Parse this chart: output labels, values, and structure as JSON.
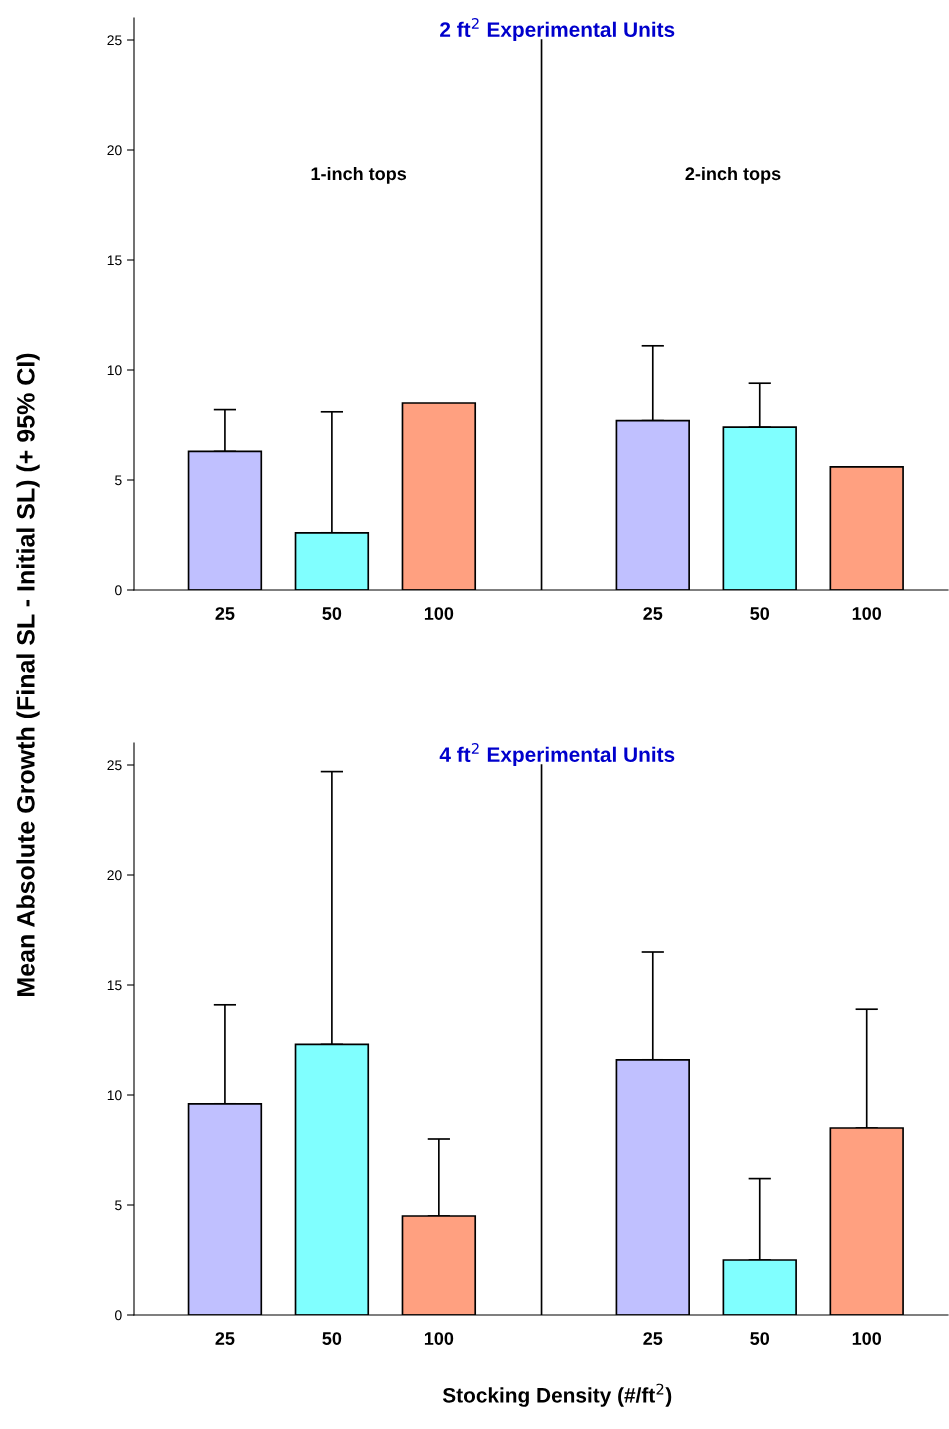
{
  "chart_data": [
    {
      "type": "bar",
      "title": "2 ft$^{2}$ Experimental Units",
      "ylabel": "Mean Absolute Growth (Final SL - Initial SL) (+ 95% CI)",
      "categories": [
        "25",
        "50",
        "100",
        null,
        "25",
        "50",
        "100"
      ],
      "values": [
        6.3,
        2.6,
        8.5,
        null,
        7.7,
        7.4,
        5.6
      ],
      "colors": [
        "#c0c0ff",
        "#80ffff",
        "#ffa080",
        null,
        "#c0c0ff",
        "#80ffff",
        "#ffa080"
      ],
      "errors": [
        [
          6.3,
          8.2
        ],
        [
          2.6,
          8.1
        ],
        null,
        null,
        [
          7.7,
          11.1
        ],
        [
          7.4,
          9.4
        ],
        null
      ],
      "annotations": [
        "1-inch tops",
        "2-inch tops"
      ],
      "ylim": [
        0,
        26
      ],
      "yticks": [
        0,
        5,
        10,
        15,
        20,
        25
      ],
      "legend": false
    },
    {
      "type": "bar",
      "title": "4 ft$^{2}$ Experimental Units",
      "xlabel": "Stocking Density (#/ft$^{2}$)",
      "categories": [
        "25",
        "50",
        "100",
        null,
        "25",
        "50",
        "100"
      ],
      "values": [
        9.6,
        12.3,
        4.5,
        null,
        11.6,
        2.5,
        8.5
      ],
      "colors": [
        "#c0c0ff",
        "#80ffff",
        "#ffa080",
        null,
        "#c0c0ff",
        "#80ffff",
        "#ffa080"
      ],
      "errors": [
        [
          9.6,
          14.1
        ],
        [
          12.3,
          24.7
        ],
        [
          4.5,
          8.0
        ],
        null,
        [
          11.6,
          16.5
        ],
        [
          2.5,
          6.2
        ],
        [
          8.5,
          13.9
        ]
      ],
      "ylim": [
        0,
        26
      ],
      "yticks": [
        0,
        5,
        10,
        15,
        20,
        25
      ],
      "legend": false
    }
  ]
}
